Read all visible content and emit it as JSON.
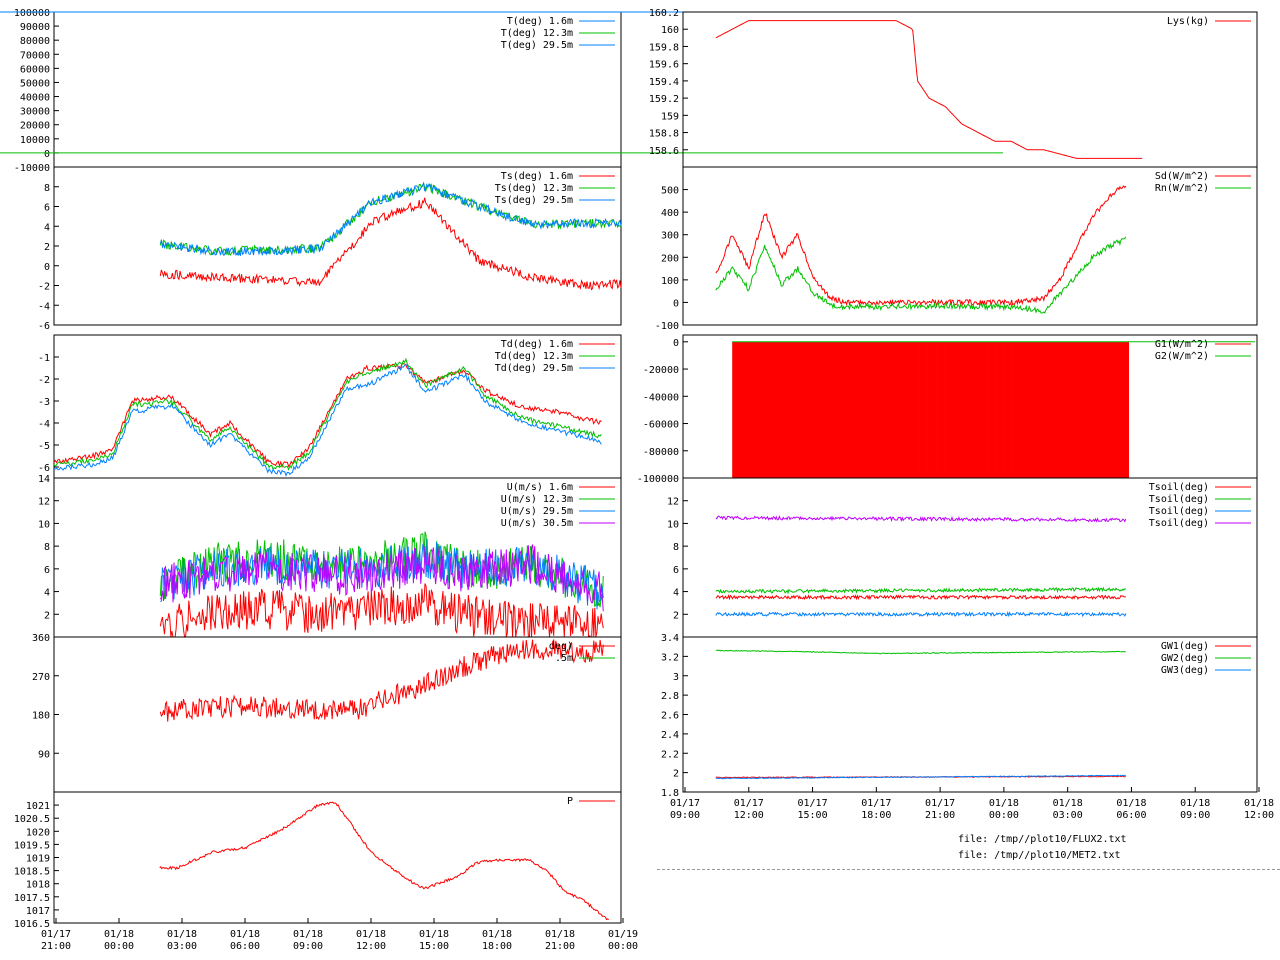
{
  "colors": {
    "red": "#ff0000",
    "green": "#00c000",
    "blue": "#0080ff",
    "purple": "#c000ff",
    "frame": "#000000"
  },
  "footer": {
    "file1": "file: /tmp//plot10/FLUX2.txt",
    "file2": "file: /tmp//plot10/MET2.txt"
  },
  "chart_data": [
    {
      "type": "line",
      "legend": [
        "T(deg)  1.6m",
        "T(deg) 12.3m",
        "T(deg) 29.5m"
      ],
      "yticks": [
        "100000",
        "90000",
        "80000",
        "70000",
        "60000",
        "50000",
        "40000",
        "30000",
        "20000",
        "10000",
        "0",
        "-10000"
      ],
      "ylim": [
        -10000,
        100000
      ],
      "series": [
        {
          "name": "T(deg) 29.5m",
          "color": "blue",
          "x": [
            -6,
            45
          ],
          "y": [
            100000,
            100000
          ]
        },
        {
          "name": "T(deg) 12.3m",
          "color": "green",
          "x": [
            -6,
            45
          ],
          "y": [
            0,
            0
          ]
        }
      ]
    },
    {
      "type": "line",
      "legend": [
        "Ts(deg)  1.6m",
        "Ts(deg) 12.3m",
        "Ts(deg) 29.5m"
      ],
      "yticks": [
        "8",
        "6",
        "4",
        "2",
        "0",
        "-2",
        "-4",
        "-6"
      ],
      "ylim": [
        -6,
        10
      ],
      "series": [
        {
          "name": "Ts(deg)  1.6m",
          "color": "red",
          "x": [
            0,
            3,
            6,
            9,
            12,
            15,
            18,
            21,
            24,
            26
          ],
          "y": [
            -0.8,
            -1.2,
            -1.4,
            -1.7,
            4.5,
            6.5,
            0.5,
            -1.2,
            -2.0,
            -1.8
          ]
        },
        {
          "name": "Ts(deg) 12.3m",
          "color": "green",
          "x": [
            0,
            3,
            6,
            9,
            12,
            15,
            18,
            21,
            24,
            26
          ],
          "y": [
            2.2,
            1.5,
            1.6,
            1.8,
            6.5,
            8.0,
            6.0,
            4.2,
            4.3,
            4.3
          ]
        },
        {
          "name": "Ts(deg) 29.5m",
          "color": "blue",
          "x": [
            0,
            3,
            6,
            9,
            12,
            15,
            18,
            21,
            24,
            26
          ],
          "y": [
            2.2,
            1.4,
            1.5,
            1.7,
            6.5,
            8.0,
            6.0,
            4.2,
            4.3,
            4.3
          ]
        }
      ]
    },
    {
      "type": "line",
      "legend": [
        "Td(deg)  1.6m",
        "Td(deg) 12.3m",
        "Td(deg) 29.5m"
      ],
      "yticks": [
        "-1",
        "-2",
        "-3",
        "-4",
        "-5",
        "-6"
      ],
      "ylim": [
        -6.5,
        0
      ],
      "series": [
        {
          "name": "Td(deg)  1.6m",
          "color": "red",
          "x": [
            -3,
            -1,
            0,
            1,
            3,
            5,
            6,
            8,
            9,
            10,
            12,
            13,
            15,
            16,
            18,
            19,
            21,
            23,
            24,
            25
          ],
          "y": [
            -5.8,
            -5.5,
            -5.2,
            -3,
            -2.8,
            -4.5,
            -4,
            -5.8,
            -5.9,
            -5.2,
            -2,
            -1.5,
            -1.4,
            -2.2,
            -1.6,
            -2.5,
            -3.3,
            -3.5,
            -3.8,
            -4
          ]
        },
        {
          "name": "Td(deg) 12.3m",
          "color": "green",
          "x": [
            -3,
            -1,
            0,
            1,
            3,
            5,
            6,
            8,
            9,
            10,
            12,
            13,
            15,
            16,
            18,
            19,
            21,
            23,
            24,
            25
          ],
          "y": [
            -5.9,
            -5.7,
            -5.4,
            -3.2,
            -3,
            -4.8,
            -4.2,
            -6,
            -6,
            -5.4,
            -2.1,
            -1.7,
            -1.2,
            -2.3,
            -1.5,
            -2.7,
            -3.8,
            -4.2,
            -4.4,
            -4.6
          ]
        },
        {
          "name": "Td(deg) 29.5m",
          "color": "blue",
          "x": [
            -3,
            -1,
            0,
            1,
            3,
            5,
            6,
            8,
            9,
            10,
            12,
            13,
            15,
            16,
            18,
            19,
            21,
            23,
            24,
            25
          ],
          "y": [
            -6.1,
            -5.9,
            -5.6,
            -3.5,
            -3.2,
            -5,
            -4.5,
            -6.2,
            -6.3,
            -5.6,
            -2.4,
            -2.3,
            -1.4,
            -2.6,
            -1.8,
            -3,
            -4,
            -4.4,
            -4.6,
            -4.9
          ]
        }
      ]
    },
    {
      "type": "line",
      "legend": [
        "U(m/s)  1.6m",
        "U(m/s) 12.3m",
        "U(m/s) 29.5m",
        "U(m/s) 30.5m"
      ],
      "yticks": [
        "14",
        "12",
        "10",
        "8",
        "6",
        "4",
        "2"
      ],
      "ylim": [
        0,
        14
      ],
      "series": [
        {
          "name": "U(m/s)  1.6m",
          "color": "red",
          "x": [
            0,
            3,
            6,
            9,
            12,
            15,
            17,
            19,
            21,
            23,
            25
          ],
          "y": [
            1.0,
            2.0,
            2.5,
            2.0,
            2.5,
            3.0,
            2.0,
            1.5,
            1.2,
            1.0,
            1.0
          ]
        },
        {
          "name": "U(m/s) 12.3m",
          "color": "green",
          "x": [
            0,
            3,
            6,
            9,
            12,
            15,
            17,
            19,
            21,
            23,
            25
          ],
          "y": [
            4.5,
            6.5,
            7.0,
            6.5,
            6.5,
            7.5,
            6.0,
            6.0,
            6.5,
            5.0,
            4.0
          ]
        },
        {
          "name": "U(m/s) 29.5m",
          "color": "blue",
          "x": [
            0,
            3,
            6,
            9,
            12,
            15,
            17,
            19,
            21,
            23,
            25
          ],
          "y": [
            4.5,
            6.0,
            6.5,
            6.0,
            6.0,
            7.0,
            6.0,
            6.0,
            6.5,
            5.0,
            4.0
          ]
        },
        {
          "name": "U(m/s) 30.5m",
          "color": "purple",
          "x": [
            0,
            3,
            6,
            9,
            12,
            15,
            17,
            19,
            21,
            23,
            25
          ],
          "y": [
            4.5,
            5.5,
            6.0,
            5.5,
            5.5,
            6.5,
            5.5,
            6.0,
            6.5,
            5.0,
            4.0
          ]
        }
      ]
    },
    {
      "type": "line",
      "legend": [
        "deg)",
        ".5m"
      ],
      "yticks": [
        "360",
        "270",
        "180",
        "90"
      ],
      "ylim": [
        0,
        360
      ],
      "series": [
        {
          "name": "",
          "color": "red",
          "x": [
            0,
            2,
            5,
            8,
            11,
            13,
            15,
            17,
            19,
            21,
            23,
            24,
            25
          ],
          "y": [
            185,
            195,
            200,
            195,
            190,
            220,
            250,
            290,
            320,
            330,
            330,
            320,
            335
          ]
        }
      ]
    },
    {
      "type": "line",
      "legend": [
        "P"
      ],
      "yticks": [
        "1021",
        "1020.5",
        "1020",
        "1019.5",
        "1019",
        "1018.5",
        "1018",
        "1017.5",
        "1017",
        "1016.5"
      ],
      "ylim": [
        1016.5,
        1021.5
      ],
      "xticks": [
        "01/17\n21:00",
        "01/18\n00:00",
        "01/18\n03:00",
        "01/18\n06:00",
        "01/18\n09:00",
        "01/18\n12:00",
        "01/18\n15:00",
        "01/18\n18:00",
        "01/18\n21:00",
        "01/19\n00:00"
      ],
      "series": [
        {
          "name": "P",
          "color": "red",
          "x": [
            0,
            1,
            3,
            5,
            7,
            9,
            10,
            12,
            14,
            15,
            17,
            18,
            19,
            21,
            22,
            23,
            24,
            25.5
          ],
          "y": [
            1018.6,
            1018.6,
            1019.2,
            1019.4,
            1020.1,
            1021.0,
            1021.1,
            1019.2,
            1018.2,
            1017.8,
            1018.3,
            1018.8,
            1018.9,
            1018.9,
            1018.5,
            1017.7,
            1017.4,
            1016.6
          ]
        }
      ]
    },
    {
      "type": "line",
      "legend": [
        "Lys(kg)"
      ],
      "yticks": [
        "160.2",
        "160",
        "159.8",
        "159.6",
        "159.4",
        "159.2",
        "159",
        "158.8",
        "158.6"
      ],
      "ylim": [
        158.4,
        160.2
      ],
      "series": [
        {
          "name": "Lys(kg)",
          "color": "red",
          "x": [
            0,
            1,
            2,
            3,
            5,
            7,
            9,
            11,
            12,
            12.3,
            13,
            14,
            15,
            16,
            17,
            18,
            19,
            20,
            22,
            24,
            26
          ],
          "y": [
            159.9,
            160.0,
            160.1,
            160.1,
            160.1,
            160.1,
            160.1,
            160.1,
            160.0,
            159.4,
            159.2,
            159.1,
            158.9,
            158.8,
            158.7,
            158.7,
            158.6,
            158.6,
            158.5,
            158.5,
            158.5
          ]
        }
      ]
    },
    {
      "type": "line",
      "legend": [
        "Sd(W/m^2)",
        "Rn(W/m^2)"
      ],
      "yticks": [
        "500",
        "400",
        "300",
        "200",
        "100",
        "0",
        "-100"
      ],
      "ylim": [
        -100,
        600
      ],
      "series": [
        {
          "name": "Sd(W/m^2)",
          "color": "red",
          "x": [
            0,
            1,
            2,
            3,
            4,
            5,
            6,
            7,
            8,
            10,
            14,
            18,
            20,
            21,
            22,
            23,
            24,
            25
          ],
          "y": [
            120,
            300,
            150,
            400,
            200,
            300,
            100,
            20,
            0,
            0,
            0,
            0,
            20,
            100,
            250,
            380,
            470,
            520
          ]
        },
        {
          "name": "Rn(W/m^2)",
          "color": "green",
          "x": [
            0,
            1,
            2,
            3,
            4,
            5,
            6,
            7,
            8,
            10,
            14,
            18,
            20,
            21,
            22,
            23,
            24,
            25
          ],
          "y": [
            60,
            150,
            60,
            250,
            80,
            150,
            40,
            -10,
            -20,
            -20,
            -15,
            -20,
            -40,
            40,
            120,
            200,
            250,
            280
          ]
        }
      ]
    },
    {
      "type": "bar",
      "legend": [
        "G1(W/m^2)",
        "G2(W/m^2)"
      ],
      "yticks": [
        "0",
        "-20000",
        "-40000",
        "-60000",
        "-80000",
        "-100000"
      ],
      "ylim": [
        -100000,
        5000
      ],
      "series": [
        {
          "name": "G1(W/m^2)",
          "color": "red",
          "x": [
            1,
            25
          ],
          "y": [
            -100000,
            -100000
          ]
        },
        {
          "name": "G2(W/m^2)",
          "color": "green",
          "x": [
            1,
            25
          ],
          "y": [
            0,
            0
          ]
        }
      ]
    },
    {
      "type": "line",
      "legend": [
        "Tsoil(deg)",
        "Tsoil(deg)",
        "Tsoil(deg)",
        "Tsoil(deg)"
      ],
      "yticks": [
        "12",
        "10",
        "8",
        "6",
        "4",
        "2"
      ],
      "ylim": [
        0,
        14
      ],
      "series": [
        {
          "name": "Tsoil(deg)",
          "color": "red",
          "x": [
            0,
            25
          ],
          "y": [
            3.5,
            3.5
          ]
        },
        {
          "name": "Tsoil(deg)",
          "color": "green",
          "x": [
            0,
            25
          ],
          "y": [
            4.0,
            4.2
          ]
        },
        {
          "name": "Tsoil(deg)",
          "color": "blue",
          "x": [
            0,
            25
          ],
          "y": [
            2.0,
            2.0
          ]
        },
        {
          "name": "Tsoil(deg)",
          "color": "purple",
          "x": [
            0,
            25
          ],
          "y": [
            10.5,
            10.3
          ]
        }
      ]
    },
    {
      "type": "line",
      "legend": [
        "GW1(deg)",
        "GW2(deg)",
        "GW3(deg)"
      ],
      "yticks": [
        "3.4",
        "3.2",
        "3",
        "2.8",
        "2.6",
        "2.4",
        "2.2",
        "2",
        "1.8"
      ],
      "ylim": [
        1.8,
        3.4
      ],
      "xticks": [
        "01/17\n09:00",
        "01/17\n12:00",
        "01/17\n15:00",
        "01/17\n18:00",
        "01/17\n21:00",
        "01/18\n00:00",
        "01/18\n03:00",
        "01/18\n06:00",
        "01/18\n09:00",
        "01/18\n12:00"
      ],
      "series": [
        {
          "name": "GW1(deg)",
          "color": "red",
          "x": [
            0,
            25
          ],
          "y": [
            1.95,
            1.96
          ]
        },
        {
          "name": "GW2(deg)",
          "color": "green",
          "x": [
            0,
            5,
            10,
            25
          ],
          "y": [
            3.26,
            3.25,
            3.23,
            3.25
          ]
        },
        {
          "name": "GW3(deg)",
          "color": "blue",
          "x": [
            0,
            25
          ],
          "y": [
            1.94,
            1.97
          ]
        }
      ]
    }
  ]
}
